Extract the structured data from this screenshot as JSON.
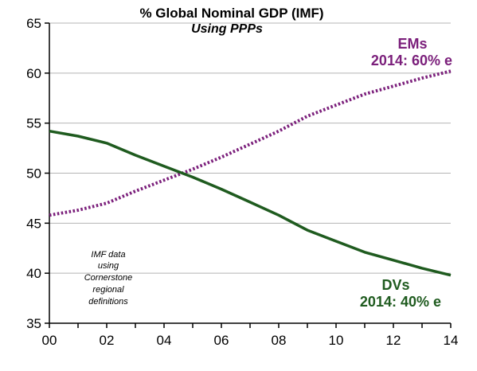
{
  "chart_data": {
    "type": "line",
    "title": "% Global Nominal GDP  (IMF)",
    "subtitle": "Using PPPs",
    "x_tick_labels": [
      "00",
      "02",
      "04",
      "06",
      "08",
      "10",
      "12",
      "14"
    ],
    "y_ticks": [
      35,
      40,
      45,
      50,
      55,
      60,
      65
    ],
    "xlim": [
      0,
      14
    ],
    "ylim": [
      35,
      65
    ],
    "grid": true,
    "x": [
      0,
      1,
      2,
      3,
      4,
      5,
      6,
      7,
      8,
      9,
      10,
      11,
      12,
      13,
      14
    ],
    "series": [
      {
        "name": "EMs",
        "label_line2": "2014: 60% e",
        "color": "#7b1f7b",
        "style": "dotted",
        "values": [
          45.8,
          46.3,
          47.0,
          48.2,
          49.3,
          50.4,
          51.6,
          52.9,
          54.2,
          55.7,
          56.8,
          57.9,
          58.7,
          59.5,
          60.2
        ]
      },
      {
        "name": "DVs",
        "label_line2": "2014: 40% e",
        "color": "#1f5b1f",
        "style": "solid",
        "values": [
          54.2,
          53.7,
          53.0,
          51.8,
          50.7,
          49.6,
          48.4,
          47.1,
          45.8,
          44.3,
          43.2,
          42.1,
          41.3,
          40.5,
          39.8
        ]
      }
    ],
    "annotation": [
      "IMF data",
      "using",
      "Cornerstone",
      "regional",
      "definitions"
    ]
  }
}
